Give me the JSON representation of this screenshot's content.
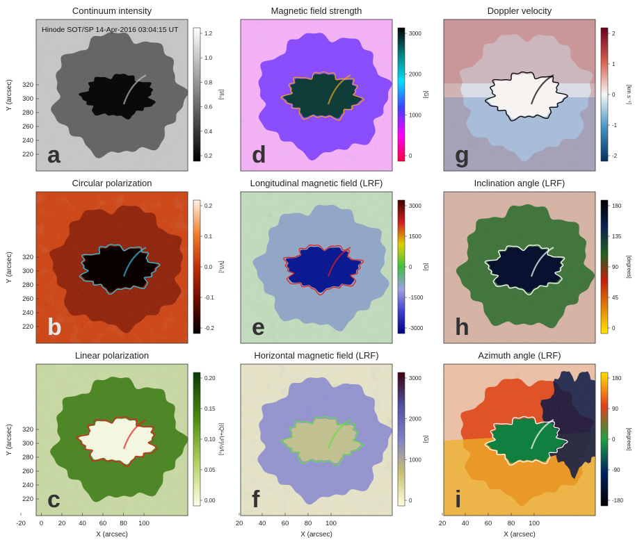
{
  "annotation": "Hinode SOT/SP 14-Apr-2016 03:04:15 UT",
  "axes": {
    "x_label": "X (arcsec)",
    "y_label": "Y (arcsec)",
    "x_ticks": [
      "-20",
      "0",
      "20",
      "40",
      "60",
      "80",
      "100"
    ],
    "y_ticks": [
      "220",
      "240",
      "260",
      "280",
      "300",
      "320"
    ],
    "x_ticks_right": [
      "20",
      "40",
      "60",
      "80",
      "100"
    ]
  },
  "panels": [
    {
      "id": "a",
      "title": "Continuum intensity",
      "letter": "a",
      "unit": "[I/I₀]",
      "ticks": [
        "1.2",
        "1.0",
        "0.8",
        "0.6",
        "0.4",
        "0.2"
      ],
      "colorbar": [
        "#000000",
        "#ffffff"
      ],
      "bg": "#a9a9a9",
      "penumbra": "#555555",
      "umbra": "#0a0a0a",
      "contour": null,
      "letter_color": "#333333",
      "noise": "#ffffff"
    },
    {
      "id": "d",
      "title": "Magnetic field strength",
      "letter": "d",
      "unit": "[G]",
      "ticks": [
        "3000",
        "2000",
        "1000",
        "0"
      ],
      "colorbar": [
        "#ff0040",
        "#ff00ff",
        "#4040ff",
        "#00e0ff",
        "#008080",
        "#000000"
      ],
      "bg": "#f3eef6",
      "penumbra": "#7a3cff",
      "umbra": "#0e3d3a",
      "contour": "#e8a020",
      "letter_color": "#333333",
      "noise": "#ff40ff"
    },
    {
      "id": "g",
      "title": "Doppler velocity",
      "letter": "g",
      "unit": "[km s⁻¹]",
      "ticks": [
        "2",
        "1",
        "0",
        "-1",
        "-2"
      ],
      "colorbar": [
        "#053061",
        "#4393c3",
        "#f7f7f7",
        "#d6604d",
        "#67001f"
      ],
      "bg": "#e8e6ea",
      "penumbra": "#d9e3ee",
      "umbra": "#f7f4f2",
      "contour": "#000000",
      "letter_color": "#333333",
      "noise": "#b05050"
    },
    {
      "id": "b",
      "title": "Circular polarization",
      "letter": "b",
      "unit": "[V/I₀]",
      "ticks": [
        "0.2",
        "0.1",
        "0.0",
        "-0.1",
        "-0.2"
      ],
      "colorbar": [
        "#000000",
        "#6b0d00",
        "#c0300a",
        "#f08030",
        "#fff2e0"
      ],
      "bg": "#c53208",
      "penumbra": "#8a1c06",
      "umbra": "#0a0000",
      "contour": "#30c0e0",
      "letter_color": "#e8e8e8",
      "noise": "#e06020"
    },
    {
      "id": "e",
      "title": "Longitudinal magnetic field (LRF)",
      "letter": "e",
      "unit": "[G]",
      "ticks": [
        "3000",
        "1500",
        "0",
        "-1500",
        "-3000"
      ],
      "colorbar": [
        "#000080",
        "#4040d0",
        "#a0a0e0",
        "#40c040",
        "#e0d000",
        "#d02020",
        "#400000"
      ],
      "bg": "#f6f5ee",
      "penumbra": "#8aa0c8",
      "umbra": "#0a1a90",
      "contour": "#e02020",
      "letter_color": "#333333",
      "noise": "#60b060"
    },
    {
      "id": "h",
      "title": "Inclination angle (LRF)",
      "letter": "h",
      "unit": "[degrees]",
      "ticks": [
        "180",
        "135",
        "90",
        "45",
        "0"
      ],
      "colorbar": [
        "#ffe600",
        "#e08000",
        "#c02010",
        "#206020",
        "#0a2050",
        "#000000"
      ],
      "bg": "#f5f2ea",
      "penumbra": "#2a6a2a",
      "umbra": "#061230",
      "contour": "#ffffff",
      "letter_color": "#333333",
      "noise": "#a04020"
    },
    {
      "id": "c",
      "title": "Linear polarization",
      "letter": "c",
      "unit": "[(Q²+U²)½/I₀]",
      "ticks": [
        "0.20",
        "0.15",
        "0.10",
        "0.05",
        "0.00"
      ],
      "colorbar": [
        "#ffffe8",
        "#b0d060",
        "#4a8a10",
        "#0a3a08"
      ],
      "bg": "#f0f2d8",
      "penumbra": "#3a7a10",
      "umbra": "#f4f6e0",
      "contour": "#e02020",
      "letter_color": "#333333",
      "noise": "#80b040"
    },
    {
      "id": "f",
      "title": "Horizontal magnetic field (LRF)",
      "letter": "f",
      "unit": "[G]",
      "ticks": [
        "3000",
        "2000",
        "1000",
        "0"
      ],
      "colorbar": [
        "#ffffe0",
        "#c8c070",
        "#8080c8",
        "#5050a0",
        "#400010"
      ],
      "bg": "#f8f8ee",
      "penumbra": "#8a8ad0",
      "umbra": "#c0c090",
      "contour": "#60e040",
      "letter_color": "#333333",
      "noise": "#c8c080"
    },
    {
      "id": "i",
      "title": "Azimuth angle (LRF)",
      "letter": "i",
      "unit": "[degrees]",
      "ticks": [
        "180",
        "90",
        "0",
        "-90",
        "-180"
      ],
      "colorbar": [
        "#000000",
        "#002060",
        "#20a040",
        "#e04020",
        "#ffe000"
      ],
      "bg": "#f6f4ee",
      "penumbra": "#e04010",
      "umbra": "#108040",
      "contour": "#ffffff",
      "letter_color": "#333333",
      "noise": "#e06020"
    }
  ]
}
